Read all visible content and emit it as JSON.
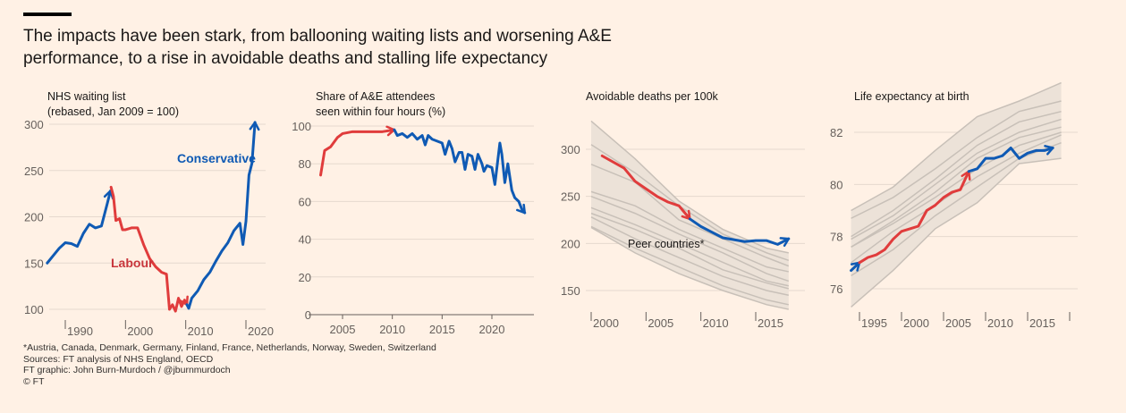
{
  "title": "The impacts have been stark, from ballooning waiting lists and worsening A&E performance, to a rise in avoidable deaths and stalling life expectancy",
  "colors": {
    "background": "#fff1e5",
    "labour": "#e03c3c",
    "conservative": "#0f5ab4",
    "peers": "#c8c0b8",
    "peer_band": "#ece2d8"
  },
  "footnotes": [
    "*Austria, Canada, Denmark, Germany, Finland, France, Netherlands, Norway, Sweden, Switzerland",
    "Sources: FT analysis of NHS England, OECD",
    "FT graphic: John Burn-Murdoch / @jburnmurdoch",
    "© FT"
  ],
  "chart_data": [
    {
      "type": "line",
      "title": "NHS waiting list",
      "subtitle": "(rebased, Jan 2009 = 100)",
      "ylim": [
        100,
        300
      ],
      "xlim": [
        1986.5,
        2022.5
      ],
      "yticks": [
        100,
        150,
        200,
        250,
        300
      ],
      "xticks": [
        1990,
        2000,
        2010,
        2020
      ],
      "grid": true,
      "annotations": [
        "Conservative",
        "Labour"
      ],
      "series": [
        {
          "party": "conservative",
          "x": [
            1987,
            1988,
            1989,
            1990,
            1991,
            1992,
            1993,
            1994,
            1995,
            1996,
            1997,
            1997.5
          ],
          "y": [
            150,
            158,
            166,
            172,
            171,
            168,
            182,
            192,
            188,
            190,
            215,
            228
          ]
        },
        {
          "party": "labour",
          "x": [
            1997.6,
            1998,
            1998.4,
            1999,
            1999.5,
            2000,
            2001,
            2002,
            2003,
            2004,
            2005,
            2006,
            2006.8,
            2007.3,
            2007.8,
            2008.3,
            2008.8,
            2009.3,
            2009.8,
            2010.2
          ],
          "y": [
            232,
            222,
            196,
            198,
            186,
            186,
            188,
            188,
            170,
            155,
            146,
            140,
            138,
            100,
            105,
            98,
            112,
            103,
            110,
            105
          ]
        },
        {
          "party": "conservative",
          "x": [
            2010.2,
            2010.5,
            2011,
            2012,
            2013,
            2014,
            2015,
            2016,
            2017,
            2018,
            2019,
            2019.5,
            2020,
            2020.5,
            2021,
            2021.5
          ],
          "y": [
            105,
            101,
            112,
            120,
            132,
            140,
            152,
            163,
            172,
            185,
            193,
            170,
            195,
            245,
            258,
            302
          ]
        }
      ]
    },
    {
      "type": "line",
      "title": "Share of A&E attendees",
      "subtitle": "seen within four hours (%)",
      "ylim": [
        0,
        100
      ],
      "xlim": [
        2001.5,
        2024.5
      ],
      "yticks": [
        0,
        20,
        40,
        60,
        80,
        100
      ],
      "xticks": [
        2005,
        2010,
        2015,
        2020
      ],
      "grid": true,
      "series": [
        {
          "party": "labour",
          "x": [
            2002.8,
            2003.2,
            2003.8,
            2004.5,
            2005,
            2006,
            2008,
            2009,
            2010.2
          ],
          "y": [
            74,
            87,
            89,
            94,
            96,
            97,
            97,
            97,
            98
          ]
        },
        {
          "party": "conservative",
          "x": [
            2010.2,
            2010.5,
            2011,
            2011.5,
            2012,
            2012.5,
            2013,
            2013.3,
            2013.6,
            2014,
            2014.5,
            2015,
            2015.3,
            2015.7,
            2016,
            2016.3,
            2016.7,
            2017,
            2017.3,
            2017.6,
            2018,
            2018.3,
            2018.6,
            2019,
            2019.2,
            2019.5,
            2020,
            2020.3,
            2020.8,
            2021,
            2021.3,
            2021.6,
            2022,
            2022.3,
            2022.7,
            2023,
            2023.3
          ],
          "y": [
            98,
            95,
            96,
            94,
            96,
            93,
            95,
            90,
            95,
            93,
            92,
            91,
            85,
            92,
            88,
            81,
            86,
            86,
            77,
            85,
            84,
            77,
            85,
            80,
            76,
            79,
            78,
            69,
            91,
            85,
            70,
            80,
            66,
            62,
            60,
            56,
            54
          ]
        }
      ]
    },
    {
      "type": "line",
      "title": "Avoidable deaths per 100k",
      "ylim": [
        130,
        330
      ],
      "xlim": [
        1999,
        2019
      ],
      "yticks": [
        150,
        200,
        250,
        300
      ],
      "xticks": [
        2000,
        2005,
        2010,
        2015
      ],
      "grid": true,
      "annotations": [
        "Peer countries*"
      ],
      "peers": {
        "x": [
          2000,
          2004,
          2008,
          2012,
          2016,
          2018
        ],
        "values": [
          [
            330,
            290,
            245,
            215,
            195,
            190
          ],
          [
            305,
            275,
            240,
            210,
            190,
            182
          ],
          [
            284,
            265,
            225,
            205,
            185,
            176
          ],
          [
            255,
            240,
            215,
            195,
            175,
            170
          ],
          [
            250,
            232,
            210,
            190,
            168,
            160
          ],
          [
            238,
            220,
            200,
            180,
            160,
            155
          ],
          [
            232,
            215,
            195,
            172,
            158,
            152
          ],
          [
            228,
            205,
            185,
            165,
            150,
            145
          ],
          [
            218,
            195,
            175,
            155,
            140,
            135
          ],
          [
            217,
            190,
            168,
            150,
            135,
            130
          ]
        ]
      },
      "series": [
        {
          "party": "labour",
          "x": [
            2001,
            2003,
            2004,
            2005,
            2006,
            2007,
            2008,
            2009
          ],
          "y": [
            293,
            280,
            266,
            258,
            250,
            244,
            240,
            226
          ]
        },
        {
          "party": "conservative",
          "x": [
            2009,
            2010,
            2011,
            2012,
            2013,
            2014,
            2015,
            2016,
            2017,
            2018
          ],
          "y": [
            226,
            218,
            212,
            206,
            204,
            202,
            203,
            203,
            199,
            205
          ]
        }
      ]
    },
    {
      "type": "line",
      "title": "Life expectancy at birth",
      "ylim": [
        75,
        84
      ],
      "xlim": [
        1994,
        2020
      ],
      "yticks": [
        76,
        78,
        80,
        82
      ],
      "xticks": [
        1995,
        2000,
        2005,
        2010,
        2015,
        2020
      ],
      "xtick_labels": [
        "1995",
        "2000",
        "2005",
        "2010",
        "2015",
        ""
      ],
      "grid": true,
      "peers": {
        "x": [
          1994,
          1999,
          2004,
          2009,
          2014,
          2019
        ],
        "values": [
          [
            79.0,
            79.9,
            81.3,
            82.6,
            83.2,
            83.9
          ],
          [
            78.7,
            79.5,
            80.6,
            81.8,
            82.8,
            83.2
          ],
          [
            78.0,
            79.0,
            80.2,
            81.5,
            82.4,
            82.8
          ],
          [
            77.9,
            78.8,
            80.0,
            81.2,
            82.0,
            82.5
          ],
          [
            77.6,
            78.6,
            79.7,
            81.0,
            81.8,
            82.2
          ],
          [
            77.6,
            78.5,
            79.5,
            80.6,
            81.5,
            82.0
          ],
          [
            77.0,
            78.2,
            79.2,
            80.3,
            81.2,
            81.9
          ],
          [
            76.5,
            77.5,
            78.8,
            79.9,
            81.0,
            81.6
          ],
          [
            75.3,
            76.7,
            78.3,
            79.3,
            80.8,
            81.0
          ]
        ]
      },
      "series": [
        {
          "party": "conservative",
          "x": [
            1994,
            1995
          ],
          "y": [
            76.7,
            77.0
          ]
        },
        {
          "party": "labour",
          "x": [
            1995,
            1996,
            1997,
            1998,
            1999,
            2000,
            2001,
            2002,
            2003,
            2004,
            2005,
            2006,
            2007,
            2008
          ],
          "y": [
            77.0,
            77.2,
            77.3,
            77.5,
            77.9,
            78.2,
            78.3,
            78.4,
            79.0,
            79.2,
            79.5,
            79.7,
            79.8,
            80.5
          ]
        },
        {
          "party": "conservative",
          "x": [
            2008,
            2009,
            2010,
            2011,
            2012,
            2013,
            2014,
            2015,
            2016,
            2017,
            2018
          ],
          "y": [
            80.5,
            80.6,
            81.0,
            81.0,
            81.1,
            81.4,
            81.0,
            81.2,
            81.3,
            81.3,
            81.4
          ]
        }
      ]
    }
  ]
}
